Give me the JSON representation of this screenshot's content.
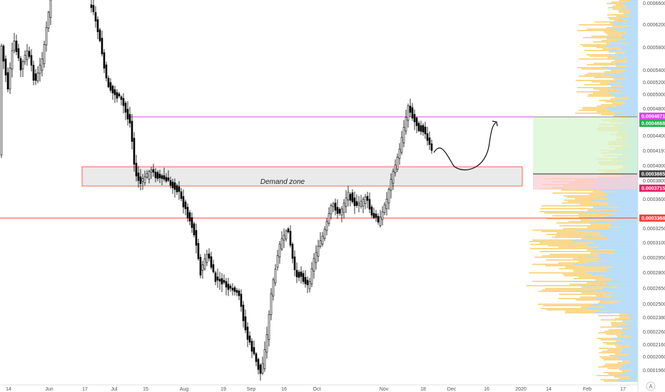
{
  "chart_data": {
    "type": "candlestick",
    "price_axis": {
      "ticks": [
        "0.0006600",
        "0.0006200",
        "0.0005800",
        "0.0005400",
        "0.0005200",
        "0.0005000",
        "0.0004800",
        "0.0004400",
        "0.0004197",
        "0.0004000",
        "0.0003800",
        "0.0003600",
        "0.0003250",
        "0.0003100",
        "0.0002950",
        "0.0002800",
        "0.0002650",
        "0.0002500",
        "0.0002380",
        "0.0002260",
        "0.0002160",
        "0.0002060",
        "0.0001960"
      ]
    },
    "time_axis": {
      "ticks": [
        "14",
        "Jun",
        "17",
        "Jul",
        "15",
        "Aug",
        "19",
        "Sep",
        "16",
        "Oct",
        "Nov",
        "18",
        "Dec",
        "16",
        "2020",
        "14",
        "Feb",
        "17"
      ]
    },
    "price_tags": [
      {
        "text": "0.0004671",
        "color": "#e040fb"
      },
      {
        "text": "0.0004668",
        "color": "#22b14c"
      },
      {
        "text": "0.0003885",
        "color": "#444444"
      },
      {
        "text": "0.0003715",
        "color": "#e91e63"
      },
      {
        "text": "0.0003368",
        "color": "#f44336"
      }
    ],
    "annotations": {
      "demand_zone_label": "Demand zone"
    },
    "colors": {
      "candle": "#000000",
      "resistance_line": "#e040fb",
      "support_line": "#f44336",
      "zone_fill": "#e6e6e6",
      "zone_border": "#f44336",
      "profit_fill": "#d8f5d0",
      "loss_fill": "#f9cdd6",
      "volume_up": "#f8c85a",
      "volume_down": "#9fd0f5"
    },
    "logo_glyph": "A"
  }
}
